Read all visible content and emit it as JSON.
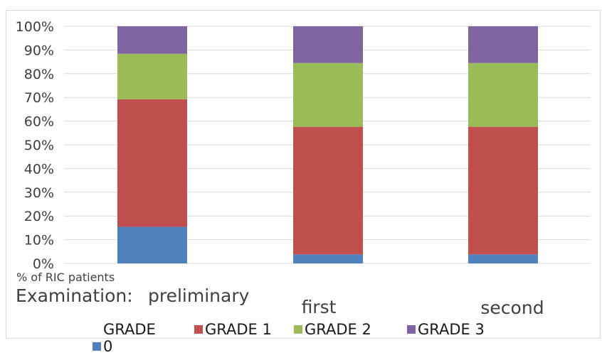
{
  "chart_data": {
    "type": "bar",
    "stacked": true,
    "percent": true,
    "categories": [
      "preliminary",
      "first",
      "second"
    ],
    "category_prefix": "Examination:",
    "series": [
      {
        "name": "GRADE 0",
        "color": "#4f81bd",
        "values": [
          15.4,
          3.8,
          3.8
        ]
      },
      {
        "name": "GRADE 1",
        "color": "#c0504d",
        "values": [
          53.8,
          53.8,
          53.8
        ]
      },
      {
        "name": "GRADE 2",
        "color": "#9bbb59",
        "values": [
          19.2,
          26.9,
          26.9
        ]
      },
      {
        "name": "GRADE 3",
        "color": "#8064a2",
        "values": [
          11.6,
          15.5,
          15.5
        ]
      }
    ],
    "yticks": [
      "0%",
      "10%",
      "20%",
      "30%",
      "40%",
      "50%",
      "60%",
      "70%",
      "80%",
      "90%",
      "100%"
    ],
    "ylim": [
      0,
      100
    ],
    "ylabel": "% of RIC patients",
    "grid": true,
    "legend_position": "bottom"
  }
}
